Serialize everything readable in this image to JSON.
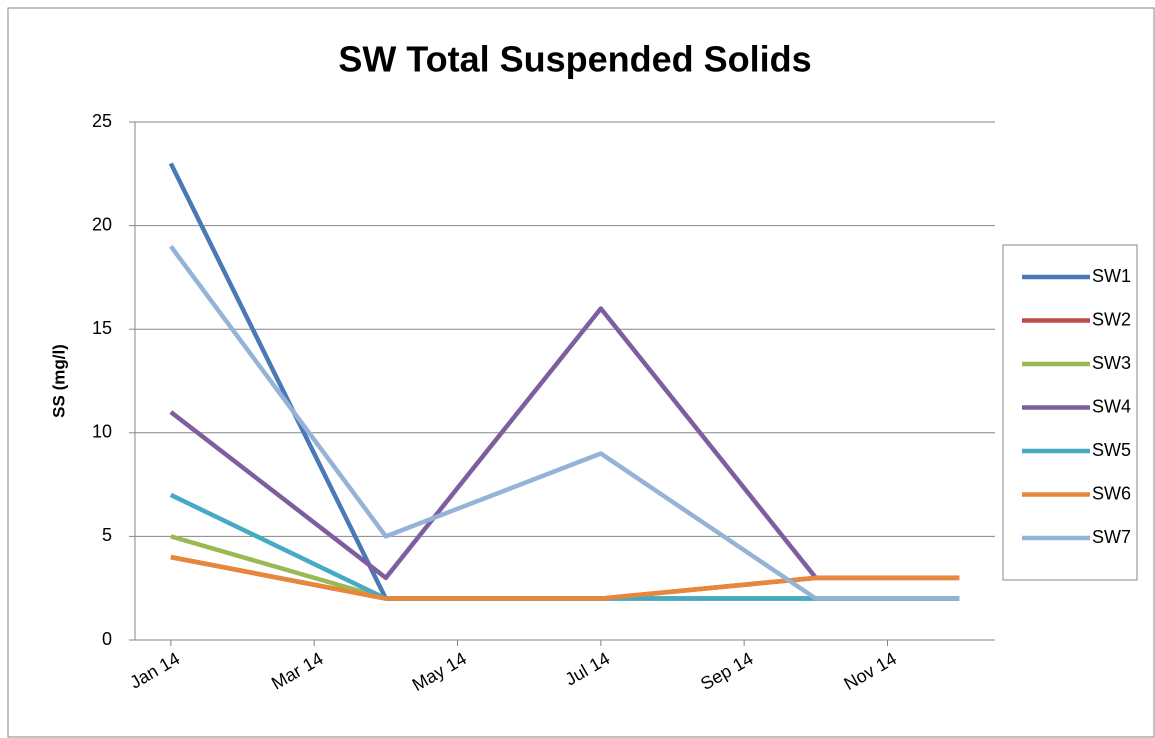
{
  "chart_data": {
    "type": "line",
    "title": "SW Total Suspended Solids",
    "y_label": "SS (mg/l)",
    "x": [
      "2014-01",
      "2014-04",
      "2014-07",
      "2014-10",
      "2014-12"
    ],
    "xticks": [
      {
        "value": "2014-01",
        "label": "Jan 14"
      },
      {
        "value": "2014-03",
        "label": "Mar 14"
      },
      {
        "value": "2014-05",
        "label": "May 14"
      },
      {
        "value": "2014-07",
        "label": "Jul 14"
      },
      {
        "value": "2014-09",
        "label": "Sep 14"
      },
      {
        "value": "2014-11",
        "label": "Nov 14"
      }
    ],
    "ylim": [
      0,
      25
    ],
    "yticks": [
      0,
      5,
      10,
      15,
      20,
      25
    ],
    "grid": true,
    "legend": "right",
    "series": [
      {
        "name": "SW1",
        "color": "#4a7ab5",
        "values": [
          23,
          2,
          2,
          2,
          2
        ]
      },
      {
        "name": "SW2",
        "color": "#be4b48",
        "values": [
          4,
          2,
          2,
          3,
          3
        ]
      },
      {
        "name": "SW3",
        "color": "#98b954",
        "values": [
          5,
          2,
          2,
          2,
          2
        ]
      },
      {
        "name": "SW4",
        "color": "#7d5fa0",
        "values": [
          11,
          3,
          16,
          3,
          3
        ]
      },
      {
        "name": "SW5",
        "color": "#46aac5",
        "values": [
          7,
          2,
          2,
          2,
          2
        ]
      },
      {
        "name": "SW6",
        "color": "#e8873a",
        "values": [
          4,
          2,
          2,
          3,
          3
        ]
      },
      {
        "name": "SW7",
        "color": "#95b3d7",
        "values": [
          19,
          5,
          9,
          2,
          2
        ]
      }
    ]
  }
}
